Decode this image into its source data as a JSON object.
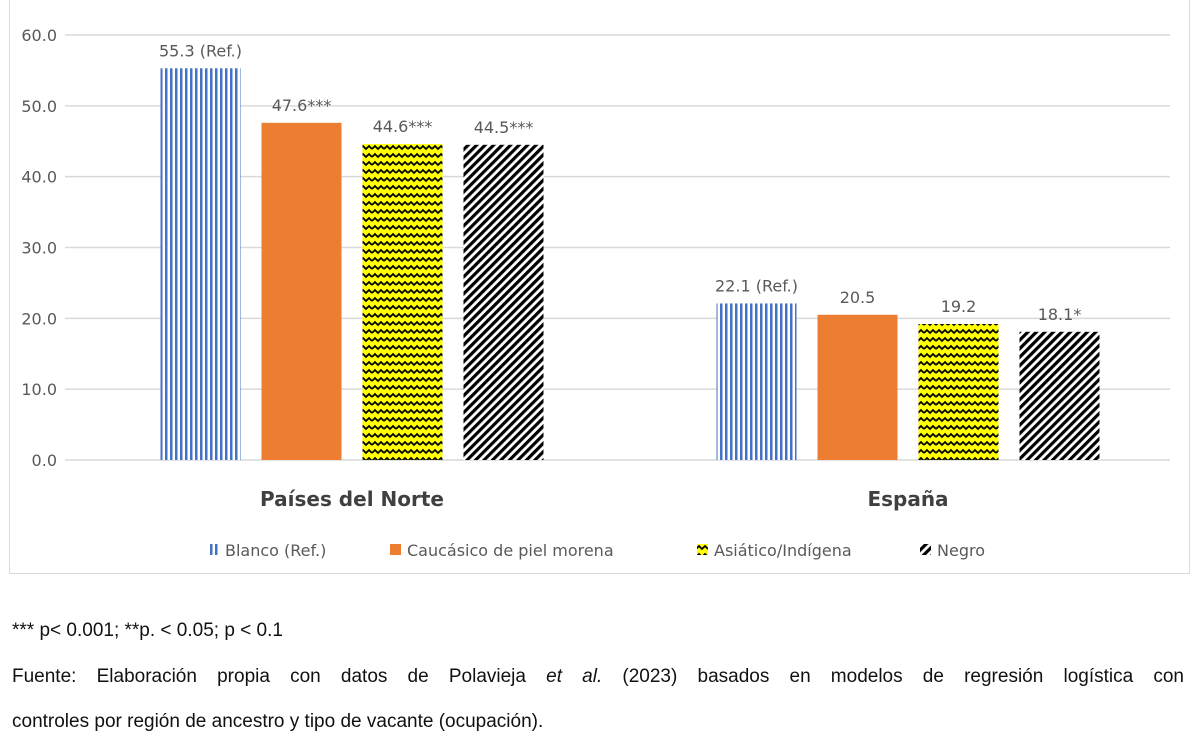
{
  "chart_data": {
    "type": "bar",
    "categories": [
      "Países del Norte",
      "España"
    ],
    "series": [
      {
        "name": "Blanco (Ref.)",
        "values": [
          55.3,
          22.1
        ],
        "labels": [
          "55.3 (Ref.)",
          "22.1 (Ref.)"
        ],
        "color": "#4472C4",
        "pattern": "vertical-lines"
      },
      {
        "name": "Caucásico de piel morena",
        "values": [
          47.6,
          20.5
        ],
        "labels": [
          "47.6***",
          "20.5"
        ],
        "color": "#ED7D31",
        "pattern": "solid"
      },
      {
        "name": "Asiático/Indígena",
        "values": [
          44.6,
          19.2
        ],
        "labels": [
          "44.6***",
          "19.2"
        ],
        "color": "#FFFF00",
        "pattern": "zigzag"
      },
      {
        "name": "Negro",
        "values": [
          44.5,
          18.1
        ],
        "labels": [
          "44.5***",
          "18.1*"
        ],
        "color": "#000000",
        "pattern": "diagonal-stripes"
      }
    ],
    "ylim": [
      0,
      60
    ],
    "yticks": [
      "0.0",
      "10.0",
      "20.0",
      "30.0",
      "40.0",
      "50.0",
      "60.0"
    ],
    "grid": true,
    "legend": "bottom"
  },
  "notes": {
    "significance": "*** p< 0.001; **p. < 0.05; p < 0.1",
    "source_pre": "Fuente: Elaboración propia con datos de Polavieja ",
    "source_italic": "et al.",
    "source_post": " (2023) basados en modelos de regresión logística con",
    "source_line2": "controles por región de ancestro y tipo de vacante (ocupación)."
  }
}
